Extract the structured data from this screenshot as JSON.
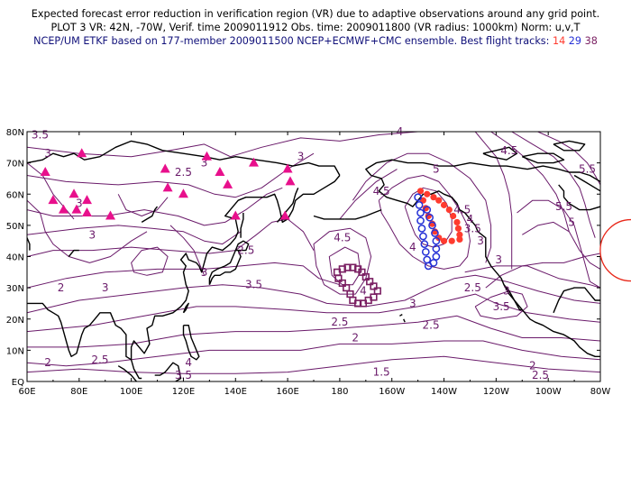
{
  "title": {
    "line1": "Expected forecast error reduction in verification region (VR) due to adaptive observations around any grid point.",
    "line2": "PLOT 3 VR: 42N, -70W, Verif. time 2009011912 Obs. time: 2009011800 (VR radius: 1000km) Norm: u,v,T",
    "line3_prefix": "NCEP/UM ETKF based on 177-member 2009011500 NCEP+ECMWF+CMC ensemble. Best flight tracks:",
    "tracks": [
      {
        "id": "14",
        "color": "#ff3b2f"
      },
      {
        "id": "29",
        "color": "#2430d6"
      },
      {
        "id": "38",
        "color": "#7a1f62"
      }
    ]
  },
  "map": {
    "lat_labels": [
      "EQ",
      "10N",
      "20N",
      "30N",
      "40N",
      "50N",
      "60N",
      "70N",
      "80N"
    ],
    "lon_labels": [
      "60E",
      "80E",
      "100E",
      "120E",
      "140E",
      "160E",
      "180",
      "160W",
      "140W",
      "120W",
      "100W",
      "80W"
    ],
    "lon_range": [
      60,
      280
    ],
    "lat_range": [
      0,
      80
    ],
    "contour_color": "#6a1a6a",
    "contour_labels": [
      {
        "t": "3.5",
        "lon": 65,
        "lat": 79
      },
      {
        "t": "3",
        "lon": 68,
        "lat": 73
      },
      {
        "t": "2.5",
        "lon": 120,
        "lat": 67
      },
      {
        "t": "3",
        "lon": 128,
        "lat": 70
      },
      {
        "t": "3",
        "lon": 80,
        "lat": 57
      },
      {
        "t": "3",
        "lon": 85,
        "lat": 47
      },
      {
        "t": "3",
        "lon": 128,
        "lat": 35
      },
      {
        "t": "3.5",
        "lon": 147,
        "lat": 31
      },
      {
        "t": "3",
        "lon": 165,
        "lat": 72
      },
      {
        "t": "2.5",
        "lon": 144,
        "lat": 42
      },
      {
        "t": "3",
        "lon": 90,
        "lat": 30
      },
      {
        "t": "2",
        "lon": 73,
        "lat": 30
      },
      {
        "t": "2.5",
        "lon": 88,
        "lat": 7
      },
      {
        "t": "2",
        "lon": 68,
        "lat": 6
      },
      {
        "t": "3.5",
        "lon": 120,
        "lat": 2
      },
      {
        "t": "4",
        "lon": 122,
        "lat": 6
      },
      {
        "t": "4.5",
        "lon": 181,
        "lat": 46
      },
      {
        "t": "4",
        "lon": 189,
        "lat": 29
      },
      {
        "t": "3",
        "lon": 208,
        "lat": 25
      },
      {
        "t": "2.5",
        "lon": 180,
        "lat": 19
      },
      {
        "t": "2.5",
        "lon": 215,
        "lat": 18
      },
      {
        "t": "2",
        "lon": 186,
        "lat": 14
      },
      {
        "t": "1.5",
        "lon": 196,
        "lat": 3
      },
      {
        "t": "2",
        "lon": 254,
        "lat": 5
      },
      {
        "t": "2.5",
        "lon": 257,
        "lat": 2
      },
      {
        "t": "4.5",
        "lon": 196,
        "lat": 61
      },
      {
        "t": "4",
        "lon": 203,
        "lat": 80
      },
      {
        "t": "5",
        "lon": 217,
        "lat": 68
      },
      {
        "t": "4",
        "lon": 208,
        "lat": 43
      },
      {
        "t": "4.5",
        "lon": 227,
        "lat": 55
      },
      {
        "t": "4",
        "lon": 230,
        "lat": 52
      },
      {
        "t": "3.5",
        "lon": 231,
        "lat": 49
      },
      {
        "t": "3",
        "lon": 234,
        "lat": 45
      },
      {
        "t": "2.5",
        "lon": 231,
        "lat": 30
      },
      {
        "t": "3.5",
        "lon": 242,
        "lat": 24
      },
      {
        "t": "3",
        "lon": 244,
        "lat": 29
      },
      {
        "t": "3",
        "lon": 241,
        "lat": 39
      },
      {
        "t": "4.5",
        "lon": 245,
        "lat": 74
      },
      {
        "t": "5.5",
        "lon": 275,
        "lat": 68
      },
      {
        "t": "5.5",
        "lon": 266,
        "lat": 56
      },
      {
        "t": "5",
        "lon": 269,
        "lat": 51
      }
    ],
    "obs_triangles": [
      {
        "lon": 67,
        "lat": 67
      },
      {
        "lon": 81,
        "lat": 73
      },
      {
        "lon": 78,
        "lat": 60
      },
      {
        "lon": 79,
        "lat": 55
      },
      {
        "lon": 74,
        "lat": 55
      },
      {
        "lon": 70,
        "lat": 58
      },
      {
        "lon": 83,
        "lat": 58
      },
      {
        "lon": 83,
        "lat": 54
      },
      {
        "lon": 92,
        "lat": 53
      },
      {
        "lon": 113,
        "lat": 68
      },
      {
        "lon": 114,
        "lat": 62
      },
      {
        "lon": 120,
        "lat": 60
      },
      {
        "lon": 129,
        "lat": 72
      },
      {
        "lon": 134,
        "lat": 67
      },
      {
        "lon": 137,
        "lat": 63
      },
      {
        "lon": 147,
        "lat": 70
      },
      {
        "lon": 140,
        "lat": 53
      },
      {
        "lon": 160,
        "lat": 68
      },
      {
        "lon": 161,
        "lat": 64
      },
      {
        "lon": 159,
        "lat": 53
      }
    ],
    "track14": [
      {
        "lon": 211,
        "lat": 61
      },
      {
        "lon": 213.5,
        "lat": 60
      },
      {
        "lon": 216,
        "lat": 59
      },
      {
        "lon": 218,
        "lat": 58
      },
      {
        "lon": 220,
        "lat": 56.5
      },
      {
        "lon": 222,
        "lat": 55
      },
      {
        "lon": 223.5,
        "lat": 53
      },
      {
        "lon": 225,
        "lat": 51
      },
      {
        "lon": 225.5,
        "lat": 49
      },
      {
        "lon": 226,
        "lat": 47
      },
      {
        "lon": 226,
        "lat": 45.5
      },
      {
        "lon": 223,
        "lat": 45
      },
      {
        "lon": 220,
        "lat": 45
      },
      {
        "lon": 218,
        "lat": 46
      },
      {
        "lon": 216.5,
        "lat": 48
      },
      {
        "lon": 215.5,
        "lat": 50.5
      },
      {
        "lon": 214,
        "lat": 53
      },
      {
        "lon": 213,
        "lat": 55.5
      },
      {
        "lon": 212,
        "lat": 58
      }
    ],
    "track29": [
      {
        "lon": 210,
        "lat": 59
      },
      {
        "lon": 210.5,
        "lat": 56.5
      },
      {
        "lon": 211,
        "lat": 54
      },
      {
        "lon": 211,
        "lat": 51.5
      },
      {
        "lon": 211.5,
        "lat": 49
      },
      {
        "lon": 212,
        "lat": 46.5
      },
      {
        "lon": 212.5,
        "lat": 44
      },
      {
        "lon": 213,
        "lat": 41.5
      },
      {
        "lon": 213.5,
        "lat": 39
      },
      {
        "lon": 214,
        "lat": 37
      },
      {
        "lon": 216,
        "lat": 38
      },
      {
        "lon": 217,
        "lat": 40
      },
      {
        "lon": 217,
        "lat": 42.5
      },
      {
        "lon": 217,
        "lat": 45
      },
      {
        "lon": 216.5,
        "lat": 47.5
      },
      {
        "lon": 215.5,
        "lat": 50
      },
      {
        "lon": 214.5,
        "lat": 52.5
      },
      {
        "lon": 213.5,
        "lat": 55
      }
    ],
    "track38": [
      {
        "lon": 179,
        "lat": 35
      },
      {
        "lon": 181,
        "lat": 36
      },
      {
        "lon": 183,
        "lat": 36.5
      },
      {
        "lon": 185,
        "lat": 36.5
      },
      {
        "lon": 187,
        "lat": 36
      },
      {
        "lon": 188.5,
        "lat": 35
      },
      {
        "lon": 190,
        "lat": 33.5
      },
      {
        "lon": 191.5,
        "lat": 32
      },
      {
        "lon": 193,
        "lat": 30.5
      },
      {
        "lon": 194.5,
        "lat": 29
      },
      {
        "lon": 193,
        "lat": 27
      },
      {
        "lon": 191,
        "lat": 26
      },
      {
        "lon": 189,
        "lat": 25
      },
      {
        "lon": 187,
        "lat": 25
      },
      {
        "lon": 185,
        "lat": 26
      },
      {
        "lon": 184,
        "lat": 28
      },
      {
        "lon": 182.5,
        "lat": 30
      },
      {
        "lon": 181,
        "lat": 31.5
      },
      {
        "lon": 179.5,
        "lat": 33
      }
    ],
    "verification_region": {
      "lat": 42,
      "lon": 290,
      "label": "VR"
    }
  }
}
